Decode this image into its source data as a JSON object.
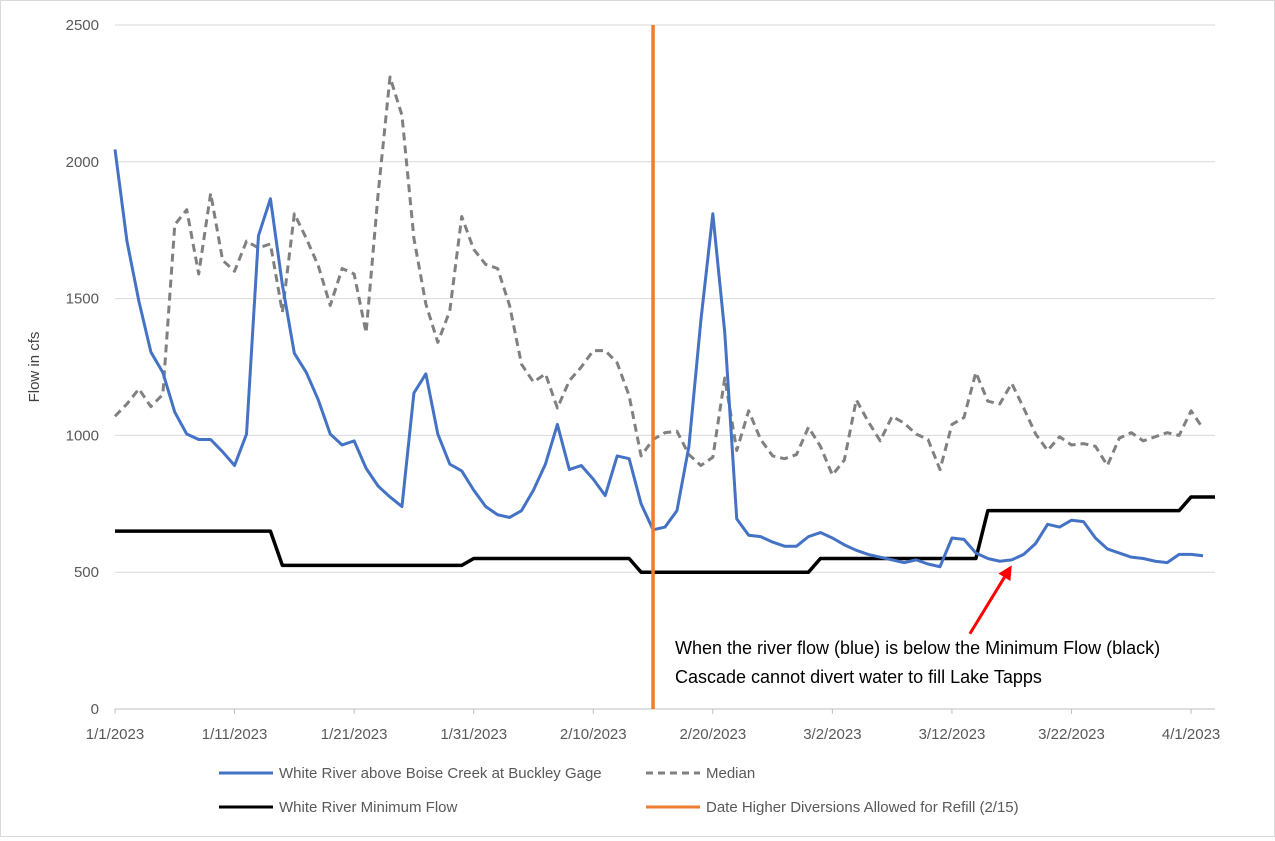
{
  "chart_data": {
    "type": "line",
    "ylabel": "Flow in cfs",
    "xlabel": "",
    "title": "",
    "ylim": [
      0,
      2500
    ],
    "yticks": [
      0,
      500,
      1000,
      1500,
      2000,
      2500
    ],
    "ytick_labels": [
      "0",
      "500",
      "1000",
      "1500",
      "2000",
      "2500"
    ],
    "xlim_days": [
      0,
      92
    ],
    "xtick_labels": [
      "1/1/2023",
      "1/11/2023",
      "1/21/2023",
      "1/31/2023",
      "2/10/2023",
      "2/20/2023",
      "3/2/2023",
      "3/12/2023",
      "3/22/2023",
      "4/1/2023"
    ],
    "grid": true,
    "legend_position": "bottom",
    "colors": {
      "flow": "#4472c4",
      "median": "#808080",
      "minimum": "#000000",
      "refill": "#ed7d31",
      "arrow": "#ff0000",
      "grid": "#d9d9d9"
    },
    "series": [
      {
        "name": "White River above Boise Creek at Buckley Gage",
        "key": "flow",
        "values": [
          2045,
          1710,
          1490,
          1305,
          1230,
          1085,
          1005,
          985,
          985,
          940,
          890,
          1005,
          1730,
          1865,
          1550,
          1300,
          1230,
          1130,
          1005,
          965,
          980,
          880,
          815,
          775,
          740,
          1155,
          1225,
          1005,
          895,
          870,
          800,
          740,
          710,
          700,
          725,
          800,
          895,
          1040,
          875,
          890,
          840,
          780,
          925,
          915,
          750,
          655,
          665,
          725,
          960,
          1420,
          1810,
          1375,
          695,
          635,
          630,
          610,
          595,
          595,
          630,
          645,
          625,
          600,
          580,
          565,
          555,
          545,
          535,
          545,
          530,
          520,
          625,
          620,
          570,
          550,
          540,
          545,
          565,
          605,
          675,
          665,
          690,
          685,
          625,
          585,
          570,
          555,
          550,
          540,
          535,
          565,
          565,
          560
        ]
      },
      {
        "name": "Median",
        "key": "median",
        "values": [
          1070,
          1115,
          1170,
          1105,
          1150,
          1770,
          1825,
          1590,
          1885,
          1640,
          1600,
          1710,
          1685,
          1700,
          1450,
          1810,
          1720,
          1620,
          1475,
          1610,
          1590,
          1375,
          1880,
          2310,
          2170,
          1720,
          1480,
          1340,
          1455,
          1800,
          1680,
          1625,
          1610,
          1475,
          1260,
          1195,
          1225,
          1100,
          1200,
          1250,
          1310,
          1310,
          1265,
          1145,
          925,
          985,
          1010,
          1015,
          930,
          890,
          920,
          1210,
          945,
          1090,
          985,
          925,
          915,
          930,
          1030,
          960,
          855,
          910,
          1130,
          1050,
          980,
          1070,
          1045,
          1005,
          985,
          875,
          1040,
          1065,
          1230,
          1125,
          1115,
          1190,
          1100,
          1005,
          945,
          995,
          965,
          970,
          960,
          890,
          990,
          1010,
          980,
          995,
          1010,
          1000,
          1090,
          1025
        ]
      },
      {
        "name": "White River Minimum Flow",
        "key": "minimum",
        "steps": [
          {
            "from": 0,
            "to": 13,
            "value": 650
          },
          {
            "from": 14,
            "to": 29,
            "value": 525
          },
          {
            "from": 30,
            "to": 43,
            "value": 550
          },
          {
            "from": 44,
            "to": 58,
            "value": 500
          },
          {
            "from": 59,
            "to": 72,
            "value": 550
          },
          {
            "from": 73,
            "to": 89,
            "value": 725
          },
          {
            "from": 90,
            "to": 92,
            "value": 775
          }
        ]
      },
      {
        "name": "Date Higher Diversions Allowed for Refill (2/15)",
        "key": "refill",
        "x_day": 45
      }
    ],
    "annotation": {
      "lines": [
        "When the river flow (blue) is below the Minimum Flow (black)",
        "Cascade cannot divert water to fill Lake Tapps"
      ],
      "arrow_from_day": 71.5,
      "arrow_from_value": 275,
      "arrow_to_day": 75,
      "arrow_to_value": 525
    }
  }
}
